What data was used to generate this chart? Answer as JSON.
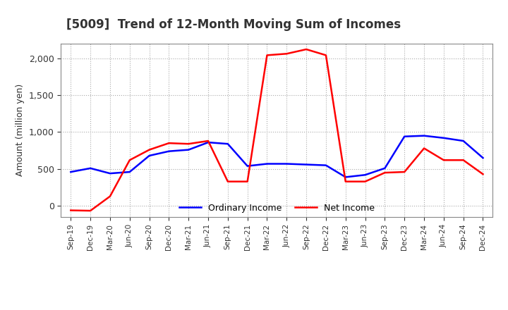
{
  "title": "[5009]  Trend of 12-Month Moving Sum of Incomes",
  "ylabel": "Amount (million yen)",
  "x_labels": [
    "Sep-19",
    "Dec-19",
    "Mar-20",
    "Jun-20",
    "Sep-20",
    "Dec-20",
    "Mar-21",
    "Jun-21",
    "Sep-21",
    "Dec-21",
    "Mar-22",
    "Jun-22",
    "Sep-22",
    "Dec-22",
    "Mar-23",
    "Jun-23",
    "Sep-23",
    "Dec-23",
    "Mar-24",
    "Jun-24",
    "Sep-24",
    "Dec-24"
  ],
  "ordinary_income": [
    460,
    510,
    440,
    460,
    680,
    740,
    760,
    860,
    840,
    540,
    570,
    570,
    560,
    550,
    390,
    420,
    510,
    940,
    950,
    920,
    880,
    650
  ],
  "net_income": [
    -60,
    -65,
    130,
    620,
    760,
    850,
    840,
    880,
    330,
    330,
    2040,
    2060,
    2120,
    2040,
    330,
    330,
    450,
    460,
    780,
    620,
    620,
    430
  ],
  "ordinary_color": "#0000ff",
  "net_color": "#ff0000",
  "ylim": [
    -150,
    2200
  ],
  "yticks": [
    0,
    500,
    1000,
    1500,
    2000
  ],
  "background_color": "#ffffff",
  "grid_color": "#aaaaaa",
  "title_fontsize": 12,
  "legend_labels": [
    "Ordinary Income",
    "Net Income"
  ]
}
